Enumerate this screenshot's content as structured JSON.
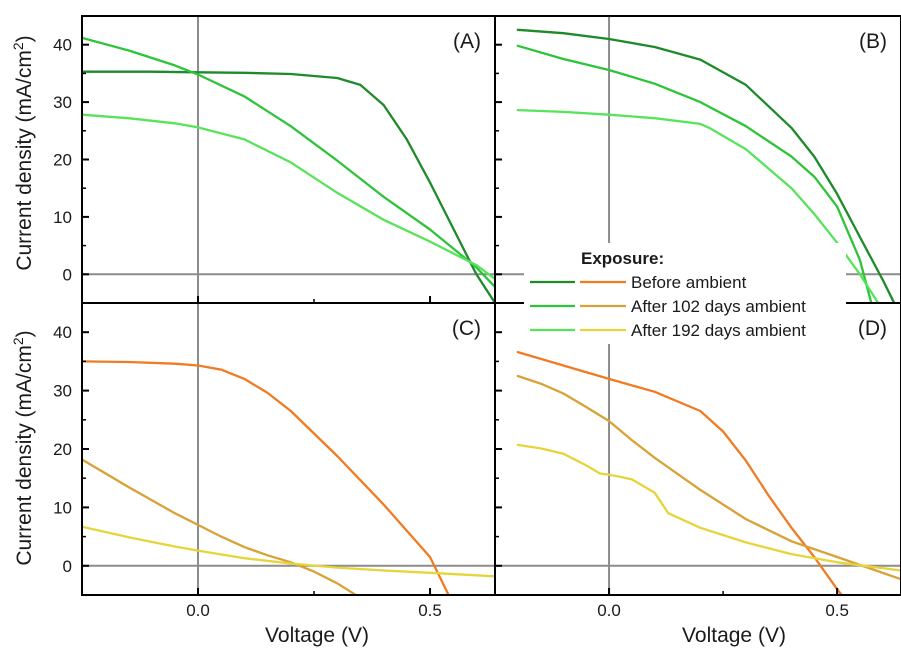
{
  "chart_data": {
    "type": "line",
    "xlabel": "Voltage (V)",
    "ylabel": "Current density (mA/cm",
    "ylabel_sup": "2",
    "ylabel_end": ")",
    "xlim": [
      -0.25,
      0.64
    ],
    "ylim": [
      -5,
      45
    ],
    "x_ticks": [
      0.0,
      0.5
    ],
    "x_tick_labels": [
      "0.0",
      "0.5"
    ],
    "y_ticks": [
      0,
      10,
      20,
      30,
      40
    ],
    "y_tick_labels": [
      "0",
      "10",
      "20",
      "30",
      "40"
    ],
    "legend": {
      "title": "Exposure:",
      "entries": [
        "Before ambient",
        "After 102 days ambient",
        "After 192 days ambient"
      ],
      "green_colors": [
        "#1e8a2a",
        "#2ec43a",
        "#58e35a"
      ],
      "orange_colors": [
        "#f07b22",
        "#d9a236",
        "#e6d43a"
      ]
    },
    "panels": [
      {
        "label": "(A)",
        "series": [
          {
            "color": "#1e8a2a",
            "x": [
              -0.25,
              -0.1,
              0.0,
              0.1,
              0.2,
              0.3,
              0.35,
              0.4,
              0.45,
              0.5,
              0.55,
              0.6,
              0.64
            ],
            "y": [
              35.3,
              35.3,
              35.2,
              35.1,
              34.9,
              34.2,
              33.0,
              29.5,
              23.5,
              16.0,
              8.0,
              0.0,
              -5.0
            ]
          },
          {
            "color": "#2ec43a",
            "x": [
              -0.25,
              -0.15,
              -0.05,
              0.0,
              0.1,
              0.2,
              0.3,
              0.4,
              0.5,
              0.6,
              0.64
            ],
            "y": [
              41.2,
              39.0,
              36.4,
              34.8,
              31.0,
              25.8,
              19.8,
              13.5,
              7.8,
              1.2,
              -2.2
            ]
          },
          {
            "color": "#58e35a",
            "x": [
              -0.25,
              -0.15,
              -0.05,
              0.0,
              0.1,
              0.2,
              0.3,
              0.4,
              0.5,
              0.6,
              0.64
            ],
            "y": [
              27.8,
              27.2,
              26.3,
              25.6,
              23.5,
              19.5,
              14.2,
              9.5,
              5.7,
              1.6,
              -0.8
            ]
          }
        ]
      },
      {
        "label": "(B)",
        "series": [
          {
            "color": "#1e8a2a",
            "x": [
              -0.2,
              -0.1,
              0.0,
              0.1,
              0.2,
              0.3,
              0.4,
              0.45,
              0.5,
              0.55,
              0.6,
              0.625
            ],
            "y": [
              42.6,
              42.0,
              41.0,
              39.6,
              37.4,
              33.0,
              25.5,
              20.5,
              14.0,
              6.5,
              -1.0,
              -5.0
            ]
          },
          {
            "color": "#2ec43a",
            "x": [
              -0.2,
              -0.1,
              0.0,
              0.1,
              0.2,
              0.3,
              0.4,
              0.45,
              0.5,
              0.55,
              0.575
            ],
            "y": [
              39.8,
              37.5,
              35.6,
              33.2,
              30.0,
              25.8,
              20.5,
              17.0,
              11.8,
              2.5,
              -5.0
            ]
          },
          {
            "color": "#58e35a",
            "x": [
              -0.2,
              -0.1,
              0.0,
              0.1,
              0.2,
              0.22,
              0.3,
              0.4,
              0.45,
              0.5,
              0.55,
              0.59
            ],
            "y": [
              28.6,
              28.3,
              27.8,
              27.2,
              26.2,
              25.5,
              21.8,
              15.0,
              10.5,
              5.5,
              0.0,
              -5.0
            ]
          }
        ]
      },
      {
        "label": "(C)",
        "series": [
          {
            "color": "#f07b22",
            "x": [
              -0.25,
              -0.15,
              -0.05,
              0.0,
              0.05,
              0.1,
              0.15,
              0.2,
              0.3,
              0.4,
              0.5,
              0.54
            ],
            "y": [
              35.0,
              34.9,
              34.6,
              34.3,
              33.6,
              32.0,
              29.6,
              26.5,
              18.8,
              10.5,
              1.5,
              -5.0
            ]
          },
          {
            "color": "#d9a236",
            "x": [
              -0.25,
              -0.15,
              -0.05,
              0.0,
              0.05,
              0.1,
              0.15,
              0.2,
              0.25,
              0.3,
              0.34
            ],
            "y": [
              18.2,
              13.5,
              9.0,
              7.0,
              5.0,
              3.2,
              1.8,
              0.6,
              -1.0,
              -3.0,
              -5.0
            ]
          },
          {
            "color": "#e6d43a",
            "x": [
              -0.25,
              -0.15,
              -0.05,
              0.0,
              0.1,
              0.2,
              0.3,
              0.4,
              0.5,
              0.64
            ],
            "y": [
              6.7,
              4.9,
              3.3,
              2.6,
              1.3,
              0.4,
              -0.3,
              -0.8,
              -1.2,
              -1.8
            ]
          }
        ]
      },
      {
        "label": "(D)",
        "series": [
          {
            "color": "#f07b22",
            "x": [
              -0.2,
              -0.1,
              0.0,
              0.1,
              0.2,
              0.25,
              0.3,
              0.35,
              0.4,
              0.45,
              0.5,
              0.51
            ],
            "y": [
              36.6,
              34.3,
              32.0,
              29.8,
              26.5,
              23.0,
              18.0,
              12.0,
              6.5,
              1.5,
              -4.0,
              -5.0
            ]
          },
          {
            "color": "#d9a236",
            "x": [
              -0.2,
              -0.15,
              -0.1,
              -0.05,
              0.0,
              0.05,
              0.1,
              0.2,
              0.3,
              0.4,
              0.5,
              0.64
            ],
            "y": [
              32.5,
              31.2,
              29.5,
              27.2,
              24.8,
              21.5,
              18.5,
              13.0,
              8.0,
              4.2,
              1.5,
              -2.3
            ]
          },
          {
            "color": "#e6d43a",
            "x": [
              -0.2,
              -0.15,
              -0.1,
              -0.05,
              -0.02,
              0.0,
              0.02,
              0.05,
              0.1,
              0.13,
              0.2,
              0.3,
              0.4,
              0.5,
              0.64
            ],
            "y": [
              20.7,
              20.1,
              19.2,
              17.2,
              15.8,
              15.6,
              15.3,
              14.8,
              12.5,
              9.0,
              6.5,
              4.0,
              2.0,
              0.6,
              -0.8
            ]
          }
        ]
      }
    ]
  }
}
